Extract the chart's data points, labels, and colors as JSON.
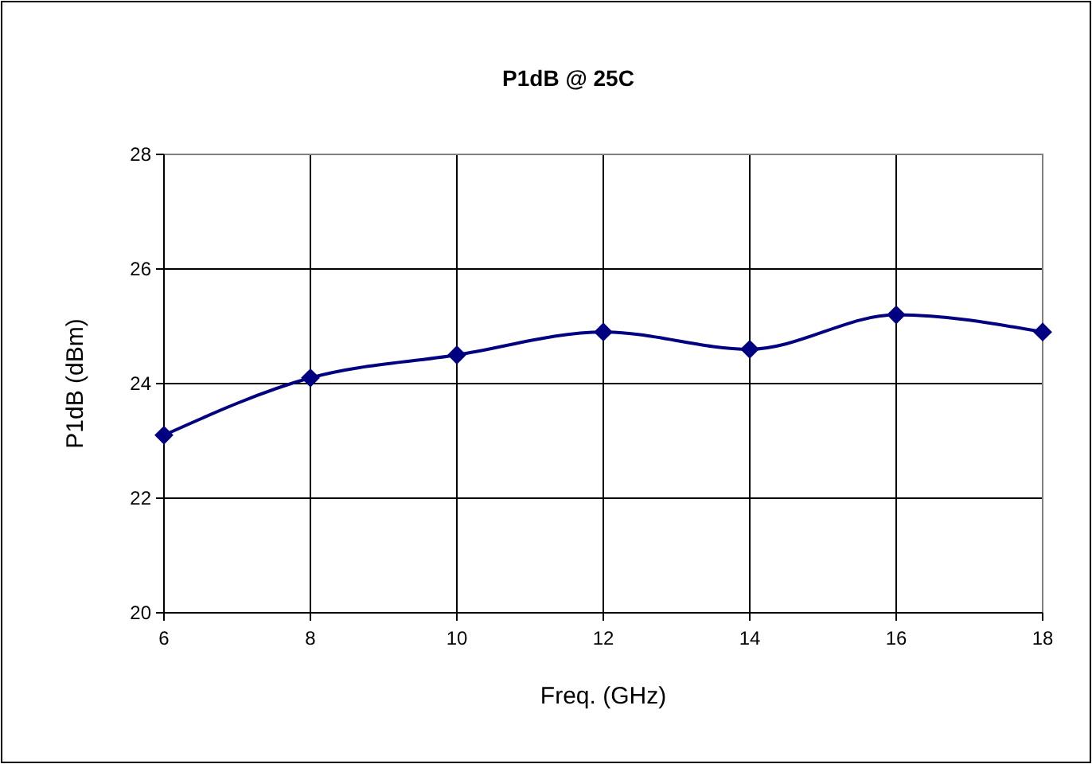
{
  "chart_data": {
    "type": "line",
    "title": "P1dB @ 25C",
    "xlabel": "Freq. (GHz)",
    "ylabel": "P1dB (dBm)",
    "x": [
      6,
      8,
      10,
      12,
      14,
      16,
      18
    ],
    "series": [
      {
        "color": "#000080",
        "values": [
          23.1,
          24.1,
          24.5,
          24.9,
          24.6,
          25.2,
          24.9
        ]
      }
    ],
    "xlim": [
      6,
      18
    ],
    "xticks": [
      6,
      8,
      10,
      12,
      14,
      16,
      18
    ],
    "ylim": [
      20,
      28
    ],
    "yticks": [
      20,
      22,
      24,
      26,
      28
    ],
    "grid": true,
    "marker": "diamond",
    "line_style": "solid"
  }
}
